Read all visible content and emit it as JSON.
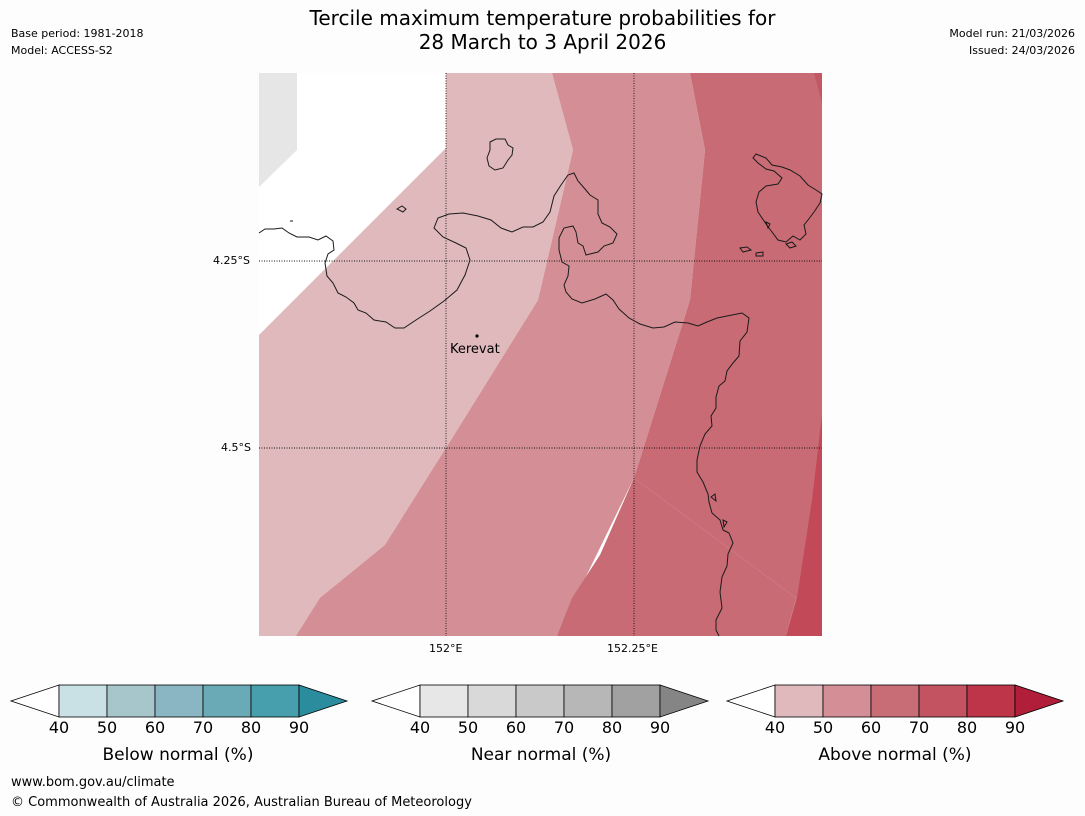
{
  "header": {
    "title_line1": "Tercile maximum temperature probabilities for",
    "title_line2": "28 March to 3 April 2026",
    "base_period": "Base period: 1981-2018",
    "model": "Model: ACCESS-S2",
    "model_run": "Model run: 21/03/2026",
    "issued": "Issued: 24/03/2026"
  },
  "map": {
    "lat_labels": [
      "4.25°S",
      "4.5°S"
    ],
    "lon_labels": [
      "152°E",
      "152.25°E"
    ],
    "place_label": "Kerevat"
  },
  "legends": [
    {
      "label": "Below normal (%)",
      "ticks": [
        "40",
        "50",
        "60",
        "70",
        "80",
        "90"
      ],
      "colors": [
        "#ffffff",
        "#c9e1e5",
        "#a7c6cb",
        "#89b6c2",
        "#6aaab7",
        "#479fad",
        "#2a8c9d"
      ]
    },
    {
      "label": "Near normal (%)",
      "ticks": [
        "40",
        "50",
        "60",
        "70",
        "80",
        "90"
      ],
      "colors": [
        "#ffffff",
        "#e7e7e7",
        "#d9d9d9",
        "#c9c9c9",
        "#b7b7b7",
        "#a1a1a1",
        "#858585"
      ]
    },
    {
      "label": "Above normal (%)",
      "ticks": [
        "40",
        "50",
        "60",
        "70",
        "80",
        "90"
      ],
      "colors": [
        "#ffffff",
        "#e0b9bd",
        "#d48f96",
        "#c86d75",
        "#c35360",
        "#be3449",
        "#b01e39"
      ]
    }
  ],
  "footer": {
    "url": "www.bom.gov.au/climate",
    "copyright": "© Commonwealth of Australia 2026, Australian Bureau of Meteorology"
  },
  "colors": {
    "above_40_50": "#e0b9bd",
    "above_50_60": "#d48f96",
    "above_60_70": "#c86d75",
    "above_70_80": "#c35360",
    "near_40_50": "#e7e7e7",
    "coast": "#1a1a1a"
  }
}
